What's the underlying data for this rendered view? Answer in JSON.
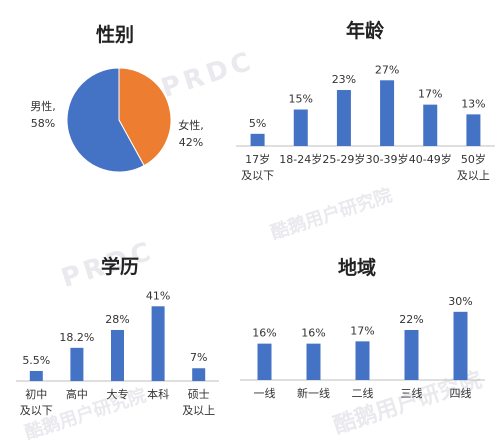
{
  "colors": {
    "bar": "#4472C4",
    "male": "#4472C4",
    "female": "#ED7D31",
    "axis": "#BFBFBF",
    "text": "#333333"
  },
  "watermark": {
    "text": "酷鹅用户研究院",
    "logo": "PRDC"
  },
  "chart_data": [
    {
      "type": "pie",
      "title": "性别",
      "slices": [
        {
          "name": "男性",
          "value": 58,
          "label": "男性,\n58%"
        },
        {
          "name": "女性",
          "value": 42,
          "label": "女性,\n42%"
        }
      ]
    },
    {
      "type": "bar",
      "title": "年龄",
      "categories": [
        "17岁\n及以下",
        "18-24岁",
        "25-29岁",
        "30-39岁",
        "40-49岁",
        "50岁\n及以上"
      ],
      "values": [
        5,
        15,
        23,
        27,
        17,
        13
      ],
      "labels": [
        "5%",
        "15%",
        "23%",
        "27%",
        "17%",
        "13%"
      ],
      "ylim": [
        0,
        30
      ]
    },
    {
      "type": "bar",
      "title": "学历",
      "categories": [
        "初中\n及以下",
        "高中",
        "大专",
        "本科",
        "硕士\n及以上"
      ],
      "values": [
        5.5,
        18.2,
        28,
        41,
        7
      ],
      "labels": [
        "5.5%",
        "18.2%",
        "28%",
        "41%",
        "7%"
      ],
      "ylim": [
        0,
        45
      ]
    },
    {
      "type": "bar",
      "title": "地域",
      "categories": [
        "一线",
        "新一线",
        "二线",
        "三线",
        "四线"
      ],
      "values": [
        16,
        16,
        17,
        22,
        30
      ],
      "labels": [
        "16%",
        "16%",
        "17%",
        "22%",
        "30%"
      ],
      "ylim": [
        0,
        33
      ]
    }
  ]
}
